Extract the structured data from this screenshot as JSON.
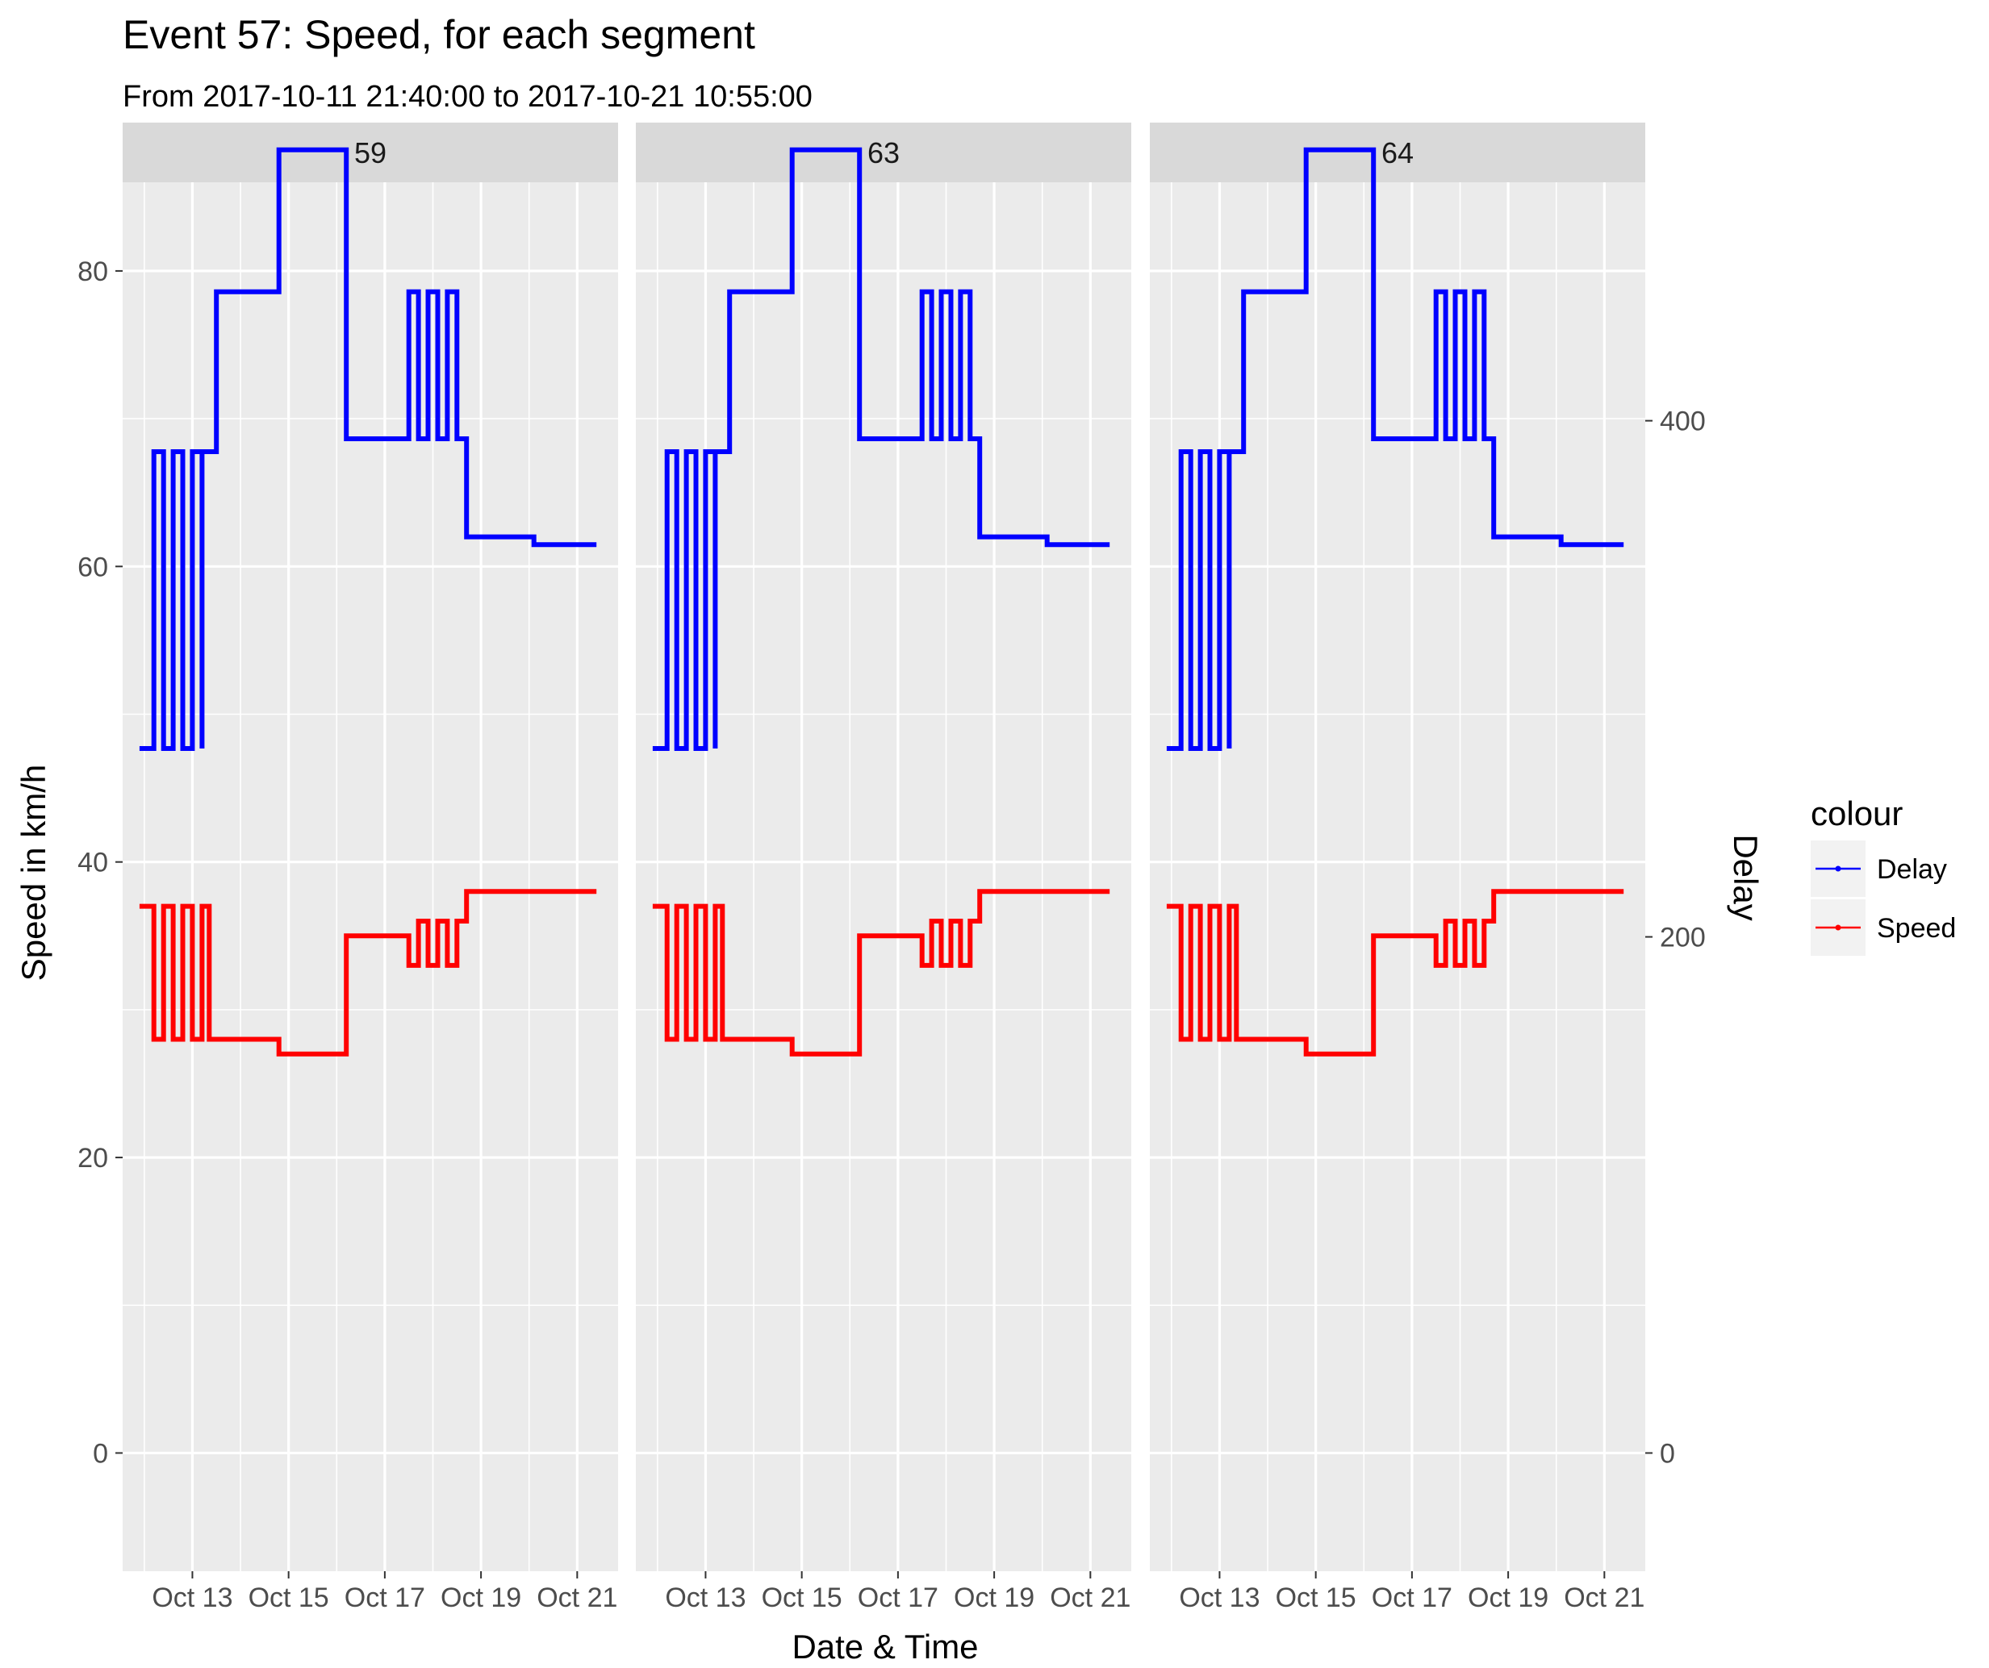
{
  "title": "Event 57: Speed, for each segment",
  "subtitle": "From 2017-10-11 21:40:00 to 2017-10-21 10:55:00",
  "colors": {
    "panel_bg": "#ebebeb",
    "strip_bg": "#d9d9d9",
    "gridline": "#ffffff",
    "speed": "#ff0000",
    "delay": "#0000ff",
    "legend_key_bg": "#f2f2f2"
  },
  "chart_data": {
    "type": "line",
    "style": "step",
    "facets": [
      "59",
      "63",
      "64"
    ],
    "xlabel": "Date & Time",
    "ylabel": "Speed in km/h",
    "y2label": "Delay",
    "xlim": [
      11.55,
      21.85
    ],
    "ylim": [
      -8,
      86
    ],
    "y2lim": [
      -45.8,
      492.4
    ],
    "x_unit": "day of October 2017",
    "x_ticks": [
      13,
      15,
      17,
      19,
      21
    ],
    "x_tick_labels": [
      "Oct 13",
      "Oct 15",
      "Oct 17",
      "Oct 19",
      "Oct 21"
    ],
    "y_ticks": [
      0,
      20,
      40,
      60,
      80
    ],
    "y2_ticks": [
      0,
      200,
      400
    ],
    "legend": {
      "title": "colour",
      "position": "right",
      "entries": [
        "Delay",
        "Speed"
      ]
    },
    "note": "identical data shown in each of the three facets",
    "series": [
      {
        "name": "Speed",
        "axis": "left",
        "color": "#ff0000",
        "steps": [
          [
            11.9,
            37
          ],
          [
            12.2,
            37
          ],
          [
            12.2,
            28
          ],
          [
            12.4,
            37
          ],
          [
            12.6,
            28
          ],
          [
            12.8,
            37
          ],
          [
            13.0,
            28
          ],
          [
            13.2,
            37
          ],
          [
            13.35,
            28
          ],
          [
            14.8,
            28
          ],
          [
            14.8,
            27
          ],
          [
            16.2,
            27
          ],
          [
            16.2,
            35
          ],
          [
            17.5,
            35
          ],
          [
            17.5,
            33
          ],
          [
            17.7,
            36
          ],
          [
            17.9,
            33
          ],
          [
            18.1,
            36
          ],
          [
            18.3,
            33
          ],
          [
            18.5,
            36
          ],
          [
            18.7,
            36
          ],
          [
            18.7,
            38
          ],
          [
            21.4,
            38
          ]
        ]
      },
      {
        "name": "Delay",
        "axis": "right",
        "color": "#0000ff",
        "steps": [
          [
            11.9,
            273
          ],
          [
            12.2,
            273
          ],
          [
            12.2,
            388
          ],
          [
            12.4,
            273
          ],
          [
            12.6,
            388
          ],
          [
            12.8,
            273
          ],
          [
            13.0,
            388
          ],
          [
            13.2,
            273
          ],
          [
            13.2,
            388
          ],
          [
            13.5,
            388
          ],
          [
            13.5,
            450
          ],
          [
            14.8,
            450
          ],
          [
            14.8,
            505
          ],
          [
            16.2,
            505
          ],
          [
            16.2,
            393
          ],
          [
            17.5,
            393
          ],
          [
            17.5,
            450
          ],
          [
            17.7,
            393
          ],
          [
            17.9,
            450
          ],
          [
            18.1,
            393
          ],
          [
            18.3,
            450
          ],
          [
            18.5,
            393
          ],
          [
            18.7,
            393
          ],
          [
            18.7,
            355
          ],
          [
            20.1,
            355
          ],
          [
            20.1,
            352
          ],
          [
            21.4,
            352
          ]
        ]
      }
    ]
  }
}
